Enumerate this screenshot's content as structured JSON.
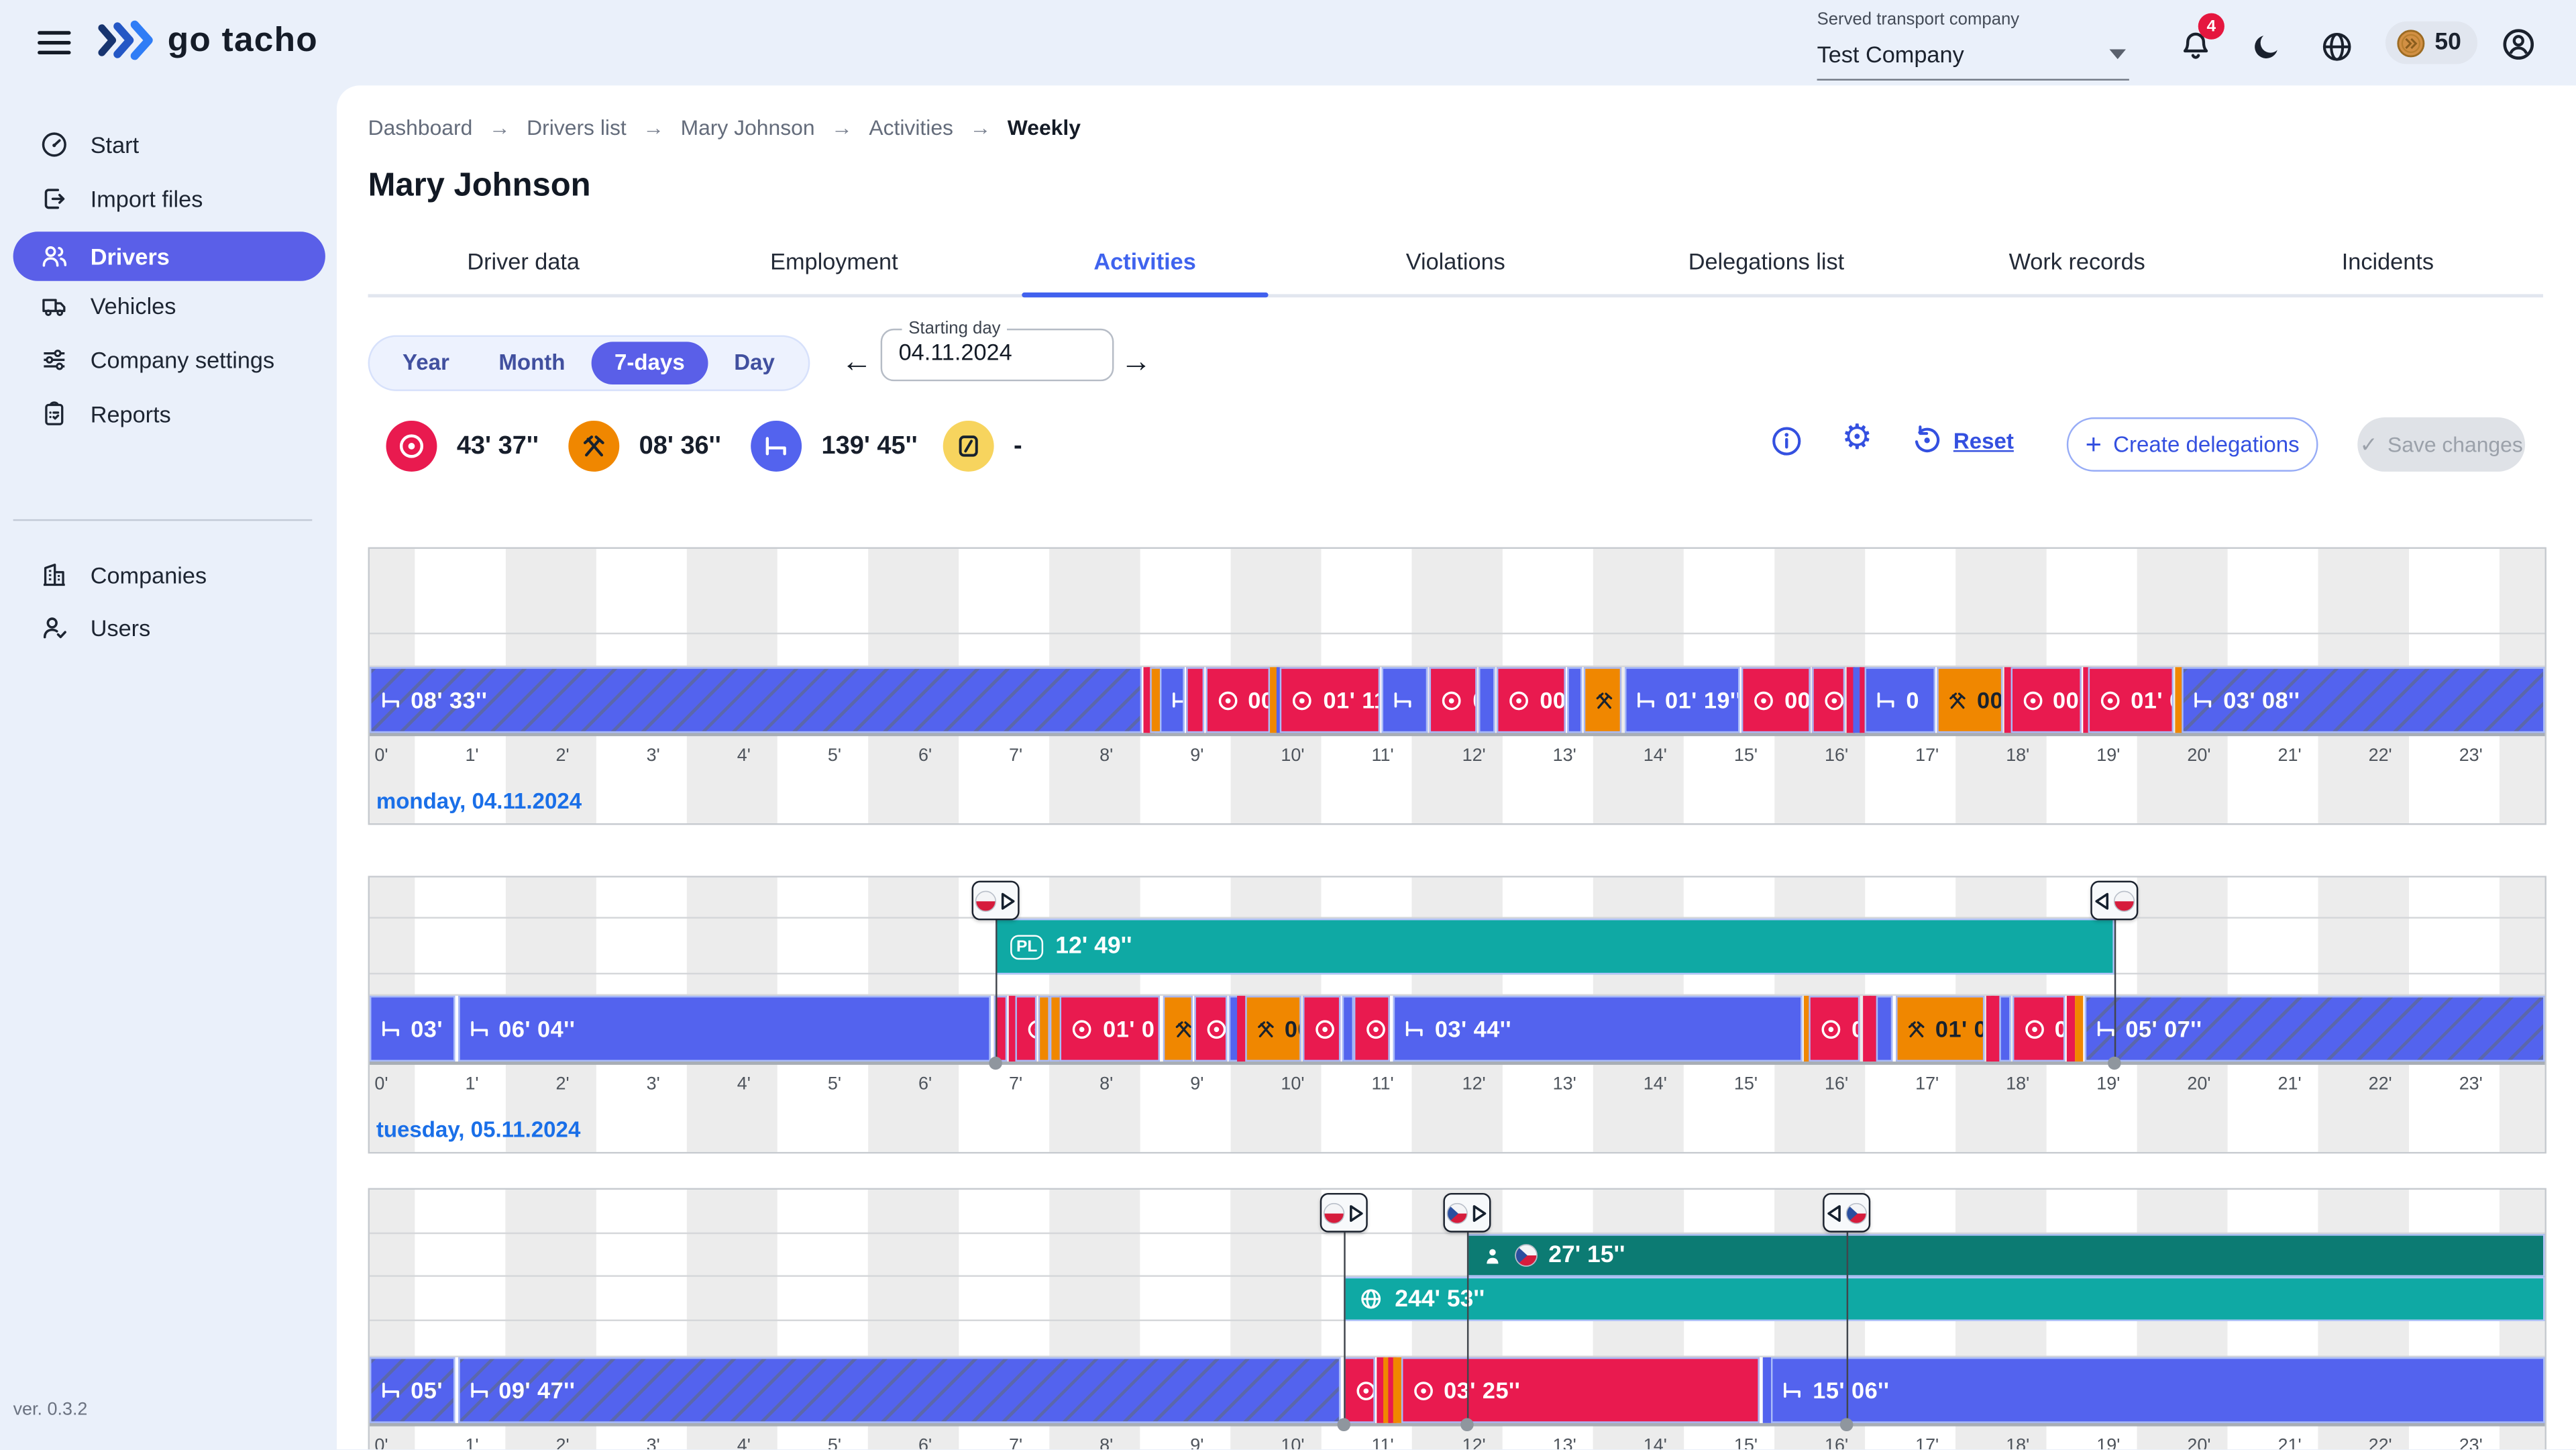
{
  "topbar": {
    "logo_text": "go tacho",
    "served_company_label": "Served transport company",
    "served_company_value": "Test Company",
    "notification_count": "4",
    "credits": "50"
  },
  "sidebar": {
    "items": [
      {
        "label": "Start",
        "icon": "speedometer-icon",
        "active": false
      },
      {
        "label": "Import files",
        "icon": "import-icon",
        "active": false
      },
      {
        "label": "Drivers",
        "icon": "drivers-icon",
        "active": true
      },
      {
        "label": "Vehicles",
        "icon": "truck-icon",
        "active": false
      },
      {
        "label": "Company settings",
        "icon": "sliders-icon",
        "active": false
      },
      {
        "label": "Reports",
        "icon": "clipboard-icon",
        "active": false
      }
    ],
    "secondary_items": [
      {
        "label": "Companies",
        "icon": "building-icon"
      },
      {
        "label": "Users",
        "icon": "user-check-icon"
      }
    ],
    "version": "ver. 0.3.2"
  },
  "breadcrumb": {
    "items": [
      "Dashboard",
      "Drivers list",
      "Mary Johnson",
      "Activities",
      "Weekly"
    ]
  },
  "page_title": "Mary Johnson",
  "tabs": {
    "items": [
      "Driver data",
      "Employment",
      "Activities",
      "Violations",
      "Delegations list",
      "Work records",
      "Incidents"
    ],
    "active": "Activities"
  },
  "period": {
    "options": [
      "Year",
      "Month",
      "7-days",
      "Day"
    ],
    "selected": "7-days",
    "starting_day_label": "Starting day",
    "starting_day_value": "04.11.2024"
  },
  "summary": {
    "items": [
      {
        "type": "drive",
        "value": "43' 37''"
      },
      {
        "type": "work",
        "value": "08' 36''"
      },
      {
        "type": "rest",
        "value": "139' 45''"
      },
      {
        "type": "availability",
        "value": "-"
      }
    ]
  },
  "actions": {
    "reset": "Reset",
    "create_delegations": "Create delegations",
    "save_changes": "Save changes"
  },
  "colors": {
    "accent": "#5a5fe8",
    "drive": "#e91a4f",
    "work": "#f08700",
    "rest": "#5363ee",
    "availability": "#f7d45e",
    "country_teal": "#0fa9a4",
    "country_dark_teal": "#0c7b73",
    "day_link": "#1a6fe8",
    "badge_red": "#e5173f"
  },
  "chart_data": {
    "type": "timeline",
    "axis_unit": "hours",
    "axis_ticks": [
      "0'",
      "1'",
      "2'",
      "3'",
      "4'",
      "5'",
      "6'",
      "7'",
      "8'",
      "9'",
      "10'",
      "11'",
      "12'",
      "13'",
      "14'",
      "15'",
      "16'",
      "17'",
      "18'",
      "19'",
      "20'",
      "21'",
      "22'",
      "23'"
    ],
    "days": [
      {
        "day_label": "monday, 04.11.2024",
        "markers": [],
        "country_bars": [],
        "segments": [
          {
            "a": "rest",
            "s": 0,
            "e": 8.52,
            "l": "08' 33''",
            "h": true
          },
          {
            "a": "drive",
            "s": 8.53,
            "e": 8.56
          },
          {
            "a": "drive",
            "s": 8.57,
            "e": 8.6
          },
          {
            "a": "work",
            "s": 8.61,
            "e": 8.7
          },
          {
            "a": "rest",
            "s": 8.71,
            "e": 8.99,
            "l": ""
          },
          {
            "a": "drive",
            "s": 9.0,
            "e": 9.2,
            "l": ""
          },
          {
            "a": "drive",
            "s": 9.22,
            "e": 9.94,
            "l": "00"
          },
          {
            "a": "work",
            "s": 9.94,
            "e": 9.99
          },
          {
            "a": "rest",
            "s": 10.0,
            "e": 10.04
          },
          {
            "a": "drive",
            "s": 10.05,
            "e": 11.14,
            "l": "01' 11''"
          },
          {
            "a": "rest",
            "s": 11.16,
            "e": 11.68,
            "l": ""
          },
          {
            "a": "drive",
            "s": 11.7,
            "e": 12.22,
            "l": "0"
          },
          {
            "a": "rest",
            "s": 12.24,
            "e": 12.42,
            "l": ""
          },
          {
            "a": "drive",
            "s": 12.44,
            "e": 13.2,
            "l": "00"
          },
          {
            "a": "rest",
            "s": 13.22,
            "e": 13.38,
            "l": ""
          },
          {
            "a": "work",
            "s": 13.4,
            "e": 13.82,
            "l": "0"
          },
          {
            "a": "rest",
            "s": 13.84,
            "e": 15.12,
            "l": "01' 19''"
          },
          {
            "a": "drive",
            "s": 15.14,
            "e": 15.9,
            "l": "00"
          },
          {
            "a": "drive",
            "s": 15.92,
            "e": 16.28,
            "l": ""
          },
          {
            "a": "drive",
            "s": 16.3,
            "e": 16.34
          },
          {
            "a": "rest",
            "s": 16.36,
            "e": 16.42
          },
          {
            "a": "drive",
            "s": 16.44,
            "e": 16.48
          },
          {
            "a": "rest",
            "s": 16.5,
            "e": 17.28,
            "l": "0"
          },
          {
            "a": "work",
            "s": 17.3,
            "e": 18.02,
            "l": "00''"
          },
          {
            "a": "drive",
            "s": 18.04,
            "e": 18.08
          },
          {
            "a": "drive",
            "s": 18.1,
            "e": 18.88,
            "l": "00'"
          },
          {
            "a": "drive",
            "s": 18.9,
            "e": 18.94
          },
          {
            "a": "drive",
            "s": 18.96,
            "e": 19.9,
            "l": "01' 09"
          },
          {
            "a": "work",
            "s": 19.92,
            "e": 19.98
          },
          {
            "a": "rest",
            "s": 20.0,
            "e": 24,
            "l": "03' 08''",
            "h": true
          }
        ]
      },
      {
        "day_label": "tuesday, 05.11.2024",
        "markers": [
          {
            "pos": 6.9,
            "flag": "pl",
            "dir": "start"
          },
          {
            "pos": 19.25,
            "flag": "pl",
            "dir": "end"
          }
        ],
        "country_bars": [
          {
            "row": 0,
            "start": 6.9,
            "end": 19.25,
            "badge": "PL",
            "icon": "pl-badge",
            "label": "12' 49''",
            "style": "teal"
          }
        ],
        "segments": [
          {
            "a": "rest",
            "s": 0,
            "e": 0.95,
            "l": "03'"
          },
          {
            "a": "rest",
            "s": 0.97,
            "e": 6.86,
            "l": "06' 04''"
          },
          {
            "a": "drive",
            "s": 6.88,
            "e": 7.04,
            "l": ""
          },
          {
            "a": "drive",
            "s": 7.06,
            "e": 7.1
          },
          {
            "a": "drive",
            "s": 7.12,
            "e": 7.36,
            "l": ""
          },
          {
            "a": "work",
            "s": 7.38,
            "e": 7.48
          },
          {
            "a": "work",
            "s": 7.5,
            "e": 7.6
          },
          {
            "a": "drive",
            "s": 7.62,
            "e": 8.72,
            "l": "01' 0"
          },
          {
            "a": "work",
            "s": 8.75,
            "e": 9.08,
            "l": ""
          },
          {
            "a": "drive",
            "s": 9.1,
            "e": 9.46,
            "l": ""
          },
          {
            "a": "rest",
            "s": 9.48,
            "e": 9.56
          },
          {
            "a": "drive",
            "s": 9.58,
            "e": 9.62
          },
          {
            "a": "work",
            "s": 9.66,
            "e": 10.28,
            "l": "00"
          },
          {
            "a": "drive",
            "s": 10.3,
            "e": 10.72,
            "l": ""
          },
          {
            "a": "rest",
            "s": 10.74,
            "e": 10.82
          },
          {
            "a": "drive",
            "s": 10.86,
            "e": 11.26,
            "l": ""
          },
          {
            "a": "rest",
            "s": 11.3,
            "e": 15.8,
            "l": "03' 44''"
          },
          {
            "a": "work",
            "s": 15.82,
            "e": 15.86
          },
          {
            "a": "drive",
            "s": 15.88,
            "e": 16.45,
            "l": "0"
          },
          {
            "a": "drive",
            "s": 16.48,
            "e": 16.52
          },
          {
            "a": "drive",
            "s": 16.55,
            "e": 16.6
          },
          {
            "a": "rest",
            "s": 16.62,
            "e": 16.8,
            "l": ""
          },
          {
            "a": "work",
            "s": 16.84,
            "e": 17.82,
            "l": "01' 0"
          },
          {
            "a": "drive",
            "s": 17.84,
            "e": 17.88
          },
          {
            "a": "drive",
            "s": 17.9,
            "e": 17.95
          },
          {
            "a": "rest",
            "s": 17.98,
            "e": 18.1,
            "l": ""
          },
          {
            "a": "drive",
            "s": 18.12,
            "e": 18.7,
            "l": "0"
          },
          {
            "a": "drive",
            "s": 18.72,
            "e": 18.78
          },
          {
            "a": "work",
            "s": 18.82,
            "e": 18.88
          },
          {
            "a": "rest",
            "s": 18.92,
            "e": 24,
            "l": "05' 07''",
            "h": true
          }
        ]
      },
      {
        "day_label": null,
        "markers": [
          {
            "pos": 10.75,
            "flag": "pl",
            "dir": "start"
          },
          {
            "pos": 12.1,
            "flag": "cz",
            "dir": "start"
          },
          {
            "pos": 16.3,
            "flag": "cz",
            "dir": "end"
          }
        ],
        "country_bars": [
          {
            "row": 0,
            "start": 12.1,
            "end": 24,
            "icon": "driver-flag",
            "flag": "cz",
            "label": "27' 15''",
            "style": "dark"
          },
          {
            "row": 1,
            "start": 10.75,
            "end": 24,
            "icon": "globe",
            "label": "244' 53''",
            "style": "teal"
          }
        ],
        "segments": [
          {
            "a": "rest",
            "s": 0,
            "e": 0.95,
            "l": "05'",
            "h": true
          },
          {
            "a": "rest",
            "s": 0.97,
            "e": 10.72,
            "l": "09' 47''",
            "h": true
          },
          {
            "a": "drive",
            "s": 10.75,
            "e": 11.1,
            "l": ""
          },
          {
            "a": "drive",
            "s": 11.12,
            "e": 11.16
          },
          {
            "a": "work",
            "s": 11.18,
            "e": 11.22
          },
          {
            "a": "drive",
            "s": 11.24,
            "e": 11.28
          },
          {
            "a": "work",
            "s": 11.3,
            "e": 11.34
          },
          {
            "a": "drive",
            "s": 11.38,
            "e": 15.33,
            "l": "03' 25''"
          },
          {
            "a": "rest",
            "s": 15.38,
            "e": 15.44
          },
          {
            "a": "rest",
            "s": 15.47,
            "e": 24,
            "l": "15' 06''"
          }
        ]
      }
    ]
  }
}
